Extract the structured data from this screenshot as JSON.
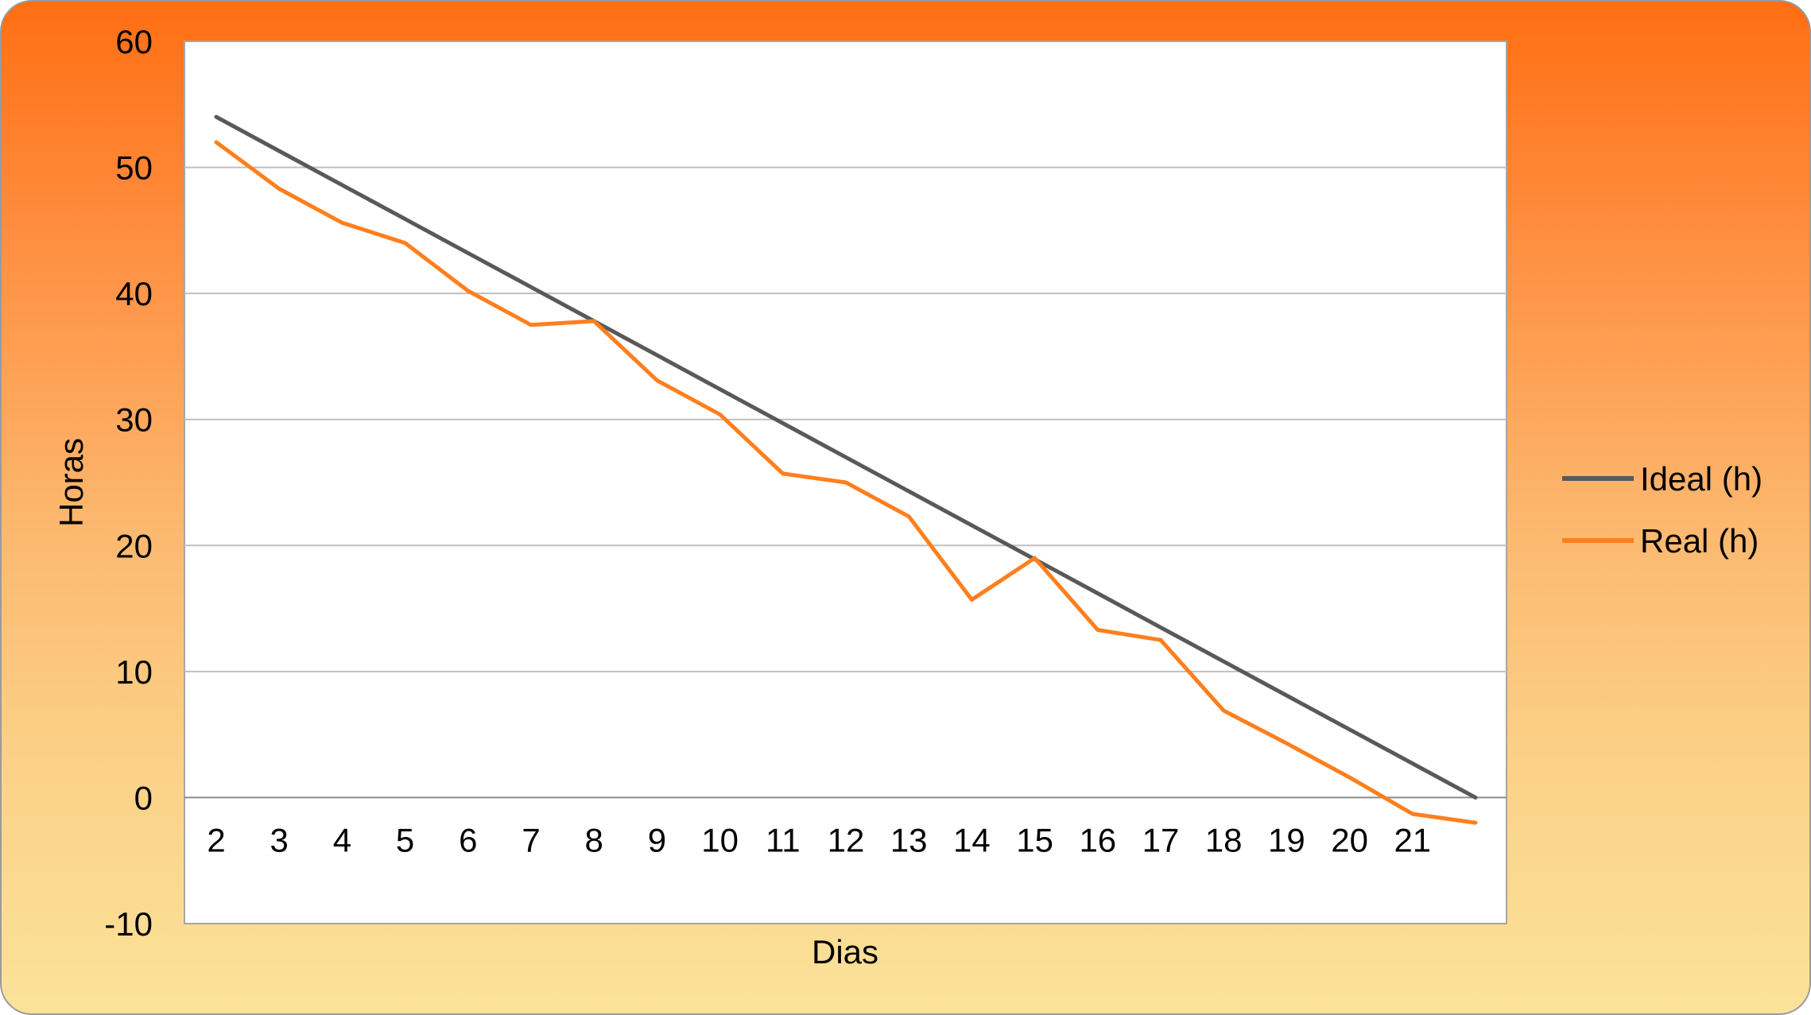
{
  "chart_data": {
    "type": "line",
    "title": "",
    "xlabel": "Dias",
    "ylabel": "Horas",
    "categories": [
      "2",
      "3",
      "4",
      "5",
      "6",
      "7",
      "8",
      "9",
      "10",
      "11",
      "12",
      "13",
      "14",
      "15",
      "16",
      "17",
      "18",
      "19",
      "20",
      "21",
      ""
    ],
    "ylim": [
      -10,
      60
    ],
    "yticks": [
      60,
      50,
      40,
      30,
      20,
      10,
      0,
      -10
    ],
    "grid": true,
    "legend_position": "right",
    "series": [
      {
        "name": "Ideal (h)",
        "color": "#595959",
        "values": [
          54,
          51.3,
          48.6,
          45.9,
          43.2,
          40.5,
          37.8,
          35.1,
          32.4,
          29.7,
          27,
          24.3,
          21.6,
          18.9,
          16.2,
          13.5,
          10.8,
          8.1,
          5.4,
          2.7,
          0
        ]
      },
      {
        "name": "Real (h)",
        "color": "#ff7f1e",
        "values": [
          52,
          48.3,
          45.6,
          44,
          40.2,
          37.5,
          37.8,
          33.1,
          30.4,
          25.7,
          25,
          22.3,
          15.7,
          19,
          13.3,
          12.5,
          6.9,
          4.3,
          1.6,
          -1.3,
          -2
        ]
      }
    ]
  }
}
